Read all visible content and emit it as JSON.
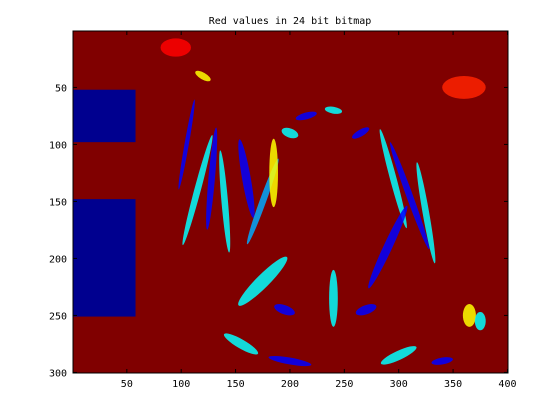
{
  "chart_data": {
    "type": "heatmap",
    "title": "Red values in 24 bit bitmap",
    "xlabel": "",
    "ylabel": "",
    "xlim": [
      0.5,
      400.5
    ],
    "ylim": [
      300.5,
      0.5
    ],
    "x_ticks": [
      50,
      100,
      150,
      200,
      250,
      300,
      350,
      400
    ],
    "y_ticks": [
      50,
      100,
      150,
      200,
      250,
      300
    ],
    "colormap": "jet",
    "colormap_colors": [
      "#00008f",
      "#0000ff",
      "#00ffff",
      "#ffff00",
      "#ff0000",
      "#800000"
    ],
    "background_color": "#800000",
    "image_size": [
      400,
      300
    ],
    "blocks": [
      {
        "x0": 0.5,
        "x1": 58,
        "y0": 52,
        "y1": 98,
        "value_color": "#00008f"
      },
      {
        "x0": 0.5,
        "x1": 58,
        "y0": 148,
        "y1": 251,
        "value_color": "#00008f"
      }
    ],
    "description_of_content": ""
  }
}
